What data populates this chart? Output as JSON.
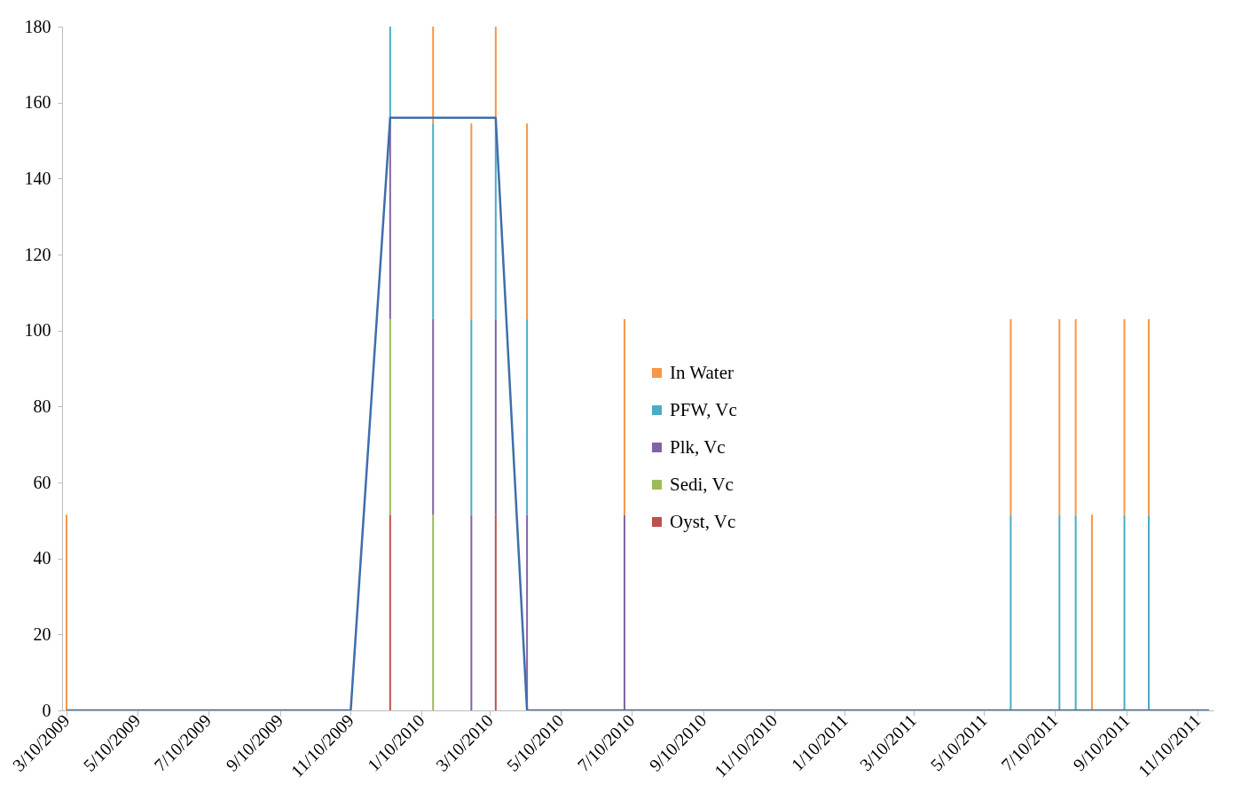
{
  "chart_data": {
    "type": "bar",
    "stacked": true,
    "x": [
      "2009-03-10",
      "2009-12-14",
      "2010-01-20",
      "2010-02-22",
      "2010-03-15",
      "2010-04-11",
      "2010-07-04",
      "2011-06-02",
      "2011-07-14",
      "2011-07-28",
      "2011-08-11",
      "2011-09-08",
      "2011-09-29"
    ],
    "series": [
      {
        "name": "Oyst, Vc",
        "color": "#c0504d",
        "values": [
          null,
          51.5,
          null,
          null,
          51.5,
          null,
          null,
          null,
          null,
          null,
          null,
          null,
          null
        ]
      },
      {
        "name": "Sedi, Vc",
        "color": "#9bbb59",
        "values": [
          null,
          51.5,
          51.5,
          null,
          null,
          null,
          null,
          null,
          null,
          null,
          null,
          null,
          null
        ]
      },
      {
        "name": "Plk, Vc",
        "color": "#8064a2",
        "values": [
          null,
          51.5,
          51.5,
          51.5,
          51.5,
          51.5,
          51.5,
          null,
          null,
          null,
          null,
          null,
          null
        ]
      },
      {
        "name": "PFW, Vc",
        "color": "#4bacc6",
        "values": [
          null,
          25.5,
          51.5,
          51.5,
          51.5,
          51.5,
          null,
          51.5,
          51.5,
          51.5,
          null,
          51.5,
          51.5
        ]
      },
      {
        "name": "In Water",
        "color": "#f79646",
        "values": [
          51.5,
          null,
          25.5,
          51.5,
          25.5,
          51.5,
          51.5,
          51.5,
          51.5,
          51.5,
          51.5,
          51.5,
          51.5
        ]
      },
      {
        "type": "line",
        "color": "#3e6eab",
        "x": [
          "2009-03-10",
          "2009-11-10",
          "2009-12-14",
          "2010-03-15",
          "2010-04-11",
          "2011-11-20"
        ],
        "values": [
          0,
          0,
          156,
          156,
          0,
          0
        ]
      }
    ],
    "xlim": [
      "2009-03-10",
      "2011-11-20"
    ],
    "xticks": [
      {
        "value": "2009-03-10",
        "label": "3/10/2009"
      },
      {
        "value": "2009-05-10",
        "label": "5/10/2009"
      },
      {
        "value": "2009-07-10",
        "label": "7/10/2009"
      },
      {
        "value": "2009-09-10",
        "label": "9/10/2009"
      },
      {
        "value": "2009-11-10",
        "label": "11/10/2009"
      },
      {
        "value": "2010-01-10",
        "label": "1/10/2010"
      },
      {
        "value": "2010-03-10",
        "label": "3/10/2010"
      },
      {
        "value": "2010-05-10",
        "label": "5/10/2010"
      },
      {
        "value": "2010-07-10",
        "label": "7/10/2010"
      },
      {
        "value": "2010-09-10",
        "label": "9/10/2010"
      },
      {
        "value": "2010-11-10",
        "label": "11/10/2010"
      },
      {
        "value": "2011-01-10",
        "label": "1/10/2011"
      },
      {
        "value": "2011-03-10",
        "label": "3/10/2011"
      },
      {
        "value": "2011-05-10",
        "label": "5/10/2011"
      },
      {
        "value": "2011-07-10",
        "label": "7/10/2011"
      },
      {
        "value": "2011-09-10",
        "label": "9/10/2011"
      },
      {
        "value": "2011-11-10",
        "label": "11/10/2011"
      }
    ],
    "ylim": [
      0,
      180
    ],
    "yticks": [
      0,
      20,
      40,
      60,
      80,
      100,
      120,
      140,
      160,
      180
    ],
    "grid": false,
    "legend": "center"
  }
}
